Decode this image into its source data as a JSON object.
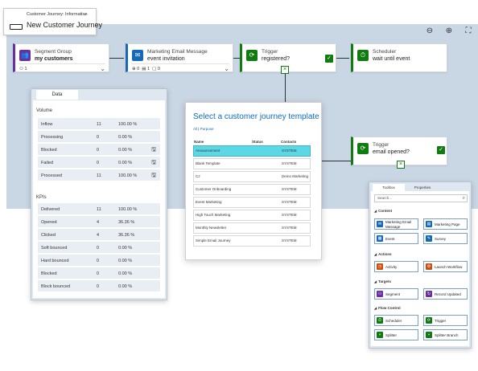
{
  "title_card": {
    "breadcrumb": "Customer Journey: Information",
    "name": "New Customer Journey"
  },
  "canvas_toolbar": {
    "zoom_out": "⊖",
    "zoom_in": "⊕",
    "fit": "⛶"
  },
  "tiles": {
    "segment": {
      "type": "Segment Group",
      "value": "my customers",
      "meta": "1",
      "icon": "👥",
      "color": "#6b2fa2"
    },
    "email": {
      "type": "Marketing Email Message",
      "value": "event invitation",
      "meta1": "0",
      "meta2": "1",
      "meta3": "0",
      "icon": "✉",
      "color": "#1469b8"
    },
    "trigger1": {
      "type": "Trigger",
      "value": "registered?",
      "icon": "⟳",
      "color": "#107c10"
    },
    "scheduler": {
      "type": "Scheduler",
      "value": "wait until event",
      "icon": "⏱",
      "color": "#107c10"
    },
    "trigger2": {
      "type": "Trigger",
      "value": "email opened?",
      "icon": "⟳",
      "color": "#107c10"
    }
  },
  "data_panel": {
    "tab": "Data",
    "volume_label": "Volume",
    "volume_rows": [
      {
        "label": "Inflow",
        "count": "11",
        "pct": "100.00 %"
      },
      {
        "label": "Processing",
        "count": "0",
        "pct": "0.00 %"
      },
      {
        "label": "Blocked",
        "count": "0",
        "pct": "0.00 %"
      },
      {
        "label": "Failed",
        "count": "0",
        "pct": "0.00 %"
      },
      {
        "label": "Processed",
        "count": "11",
        "pct": "100.00 %"
      }
    ],
    "kpi_label": "KPIs",
    "kpi_rows": [
      {
        "label": "Delivered",
        "count": "11",
        "pct": "100.00 %"
      },
      {
        "label": "Opened",
        "count": "4",
        "pct": "36.36 %"
      },
      {
        "label": "Clicked",
        "count": "4",
        "pct": "36.36 %"
      },
      {
        "label": "Soft bounced",
        "count": "0",
        "pct": "0.00 %"
      },
      {
        "label": "Hard bounced",
        "count": "0",
        "pct": "0.00 %"
      },
      {
        "label": "Blocked",
        "count": "0",
        "pct": "0.00 %"
      },
      {
        "label": "Block bounced",
        "count": "0",
        "pct": "0.00 %"
      }
    ]
  },
  "template_dialog": {
    "title": "Select a customer journey template",
    "filter_all": "All",
    "filter_sep": "|",
    "filter_purpose": "Purpose",
    "col_name": "Name",
    "col_status": "Status",
    "col_contacts": "Contacts",
    "rows": [
      {
        "name": "Announcement",
        "contacts": "SYSTEM"
      },
      {
        "name": "Blank Template",
        "contacts": "SYSTEM"
      },
      {
        "name": "CJ",
        "contacts": "Demo Marketing"
      },
      {
        "name": "Customer Onboarding",
        "contacts": "SYSTEM"
      },
      {
        "name": "Event Marketing",
        "contacts": "SYSTEM"
      },
      {
        "name": "High Touch Marketing",
        "contacts": "SYSTEM"
      },
      {
        "name": "Monthly Newsletter",
        "contacts": "SYSTEM"
      },
      {
        "name": "Simple Email Journey",
        "contacts": "SYSTEM"
      }
    ]
  },
  "toolbox": {
    "tab_toolbox": "Toolbox",
    "tab_properties": "Properties",
    "search_placeholder": "Search...",
    "categories": {
      "content": "Content",
      "actions": "Actions",
      "targets": "Targets",
      "flow": "Flow Control"
    },
    "items": {
      "marketing_email": "Marketing Email Message",
      "marketing_page": "Marketing Page",
      "event": "Event",
      "survey": "Survey",
      "activity": "Activity",
      "launch_workflow": "Launch Workflow",
      "segment": "Segment",
      "record_updated": "Record Updated",
      "scheduler": "Scheduler",
      "trigger": "Trigger",
      "splitter": "Splitter",
      "splitter_branch": "Splitter Branch"
    },
    "colors": {
      "content": "#1469b8",
      "actions": "#ca5010",
      "targets": "#6b2fa2",
      "flow": "#107c10"
    }
  }
}
